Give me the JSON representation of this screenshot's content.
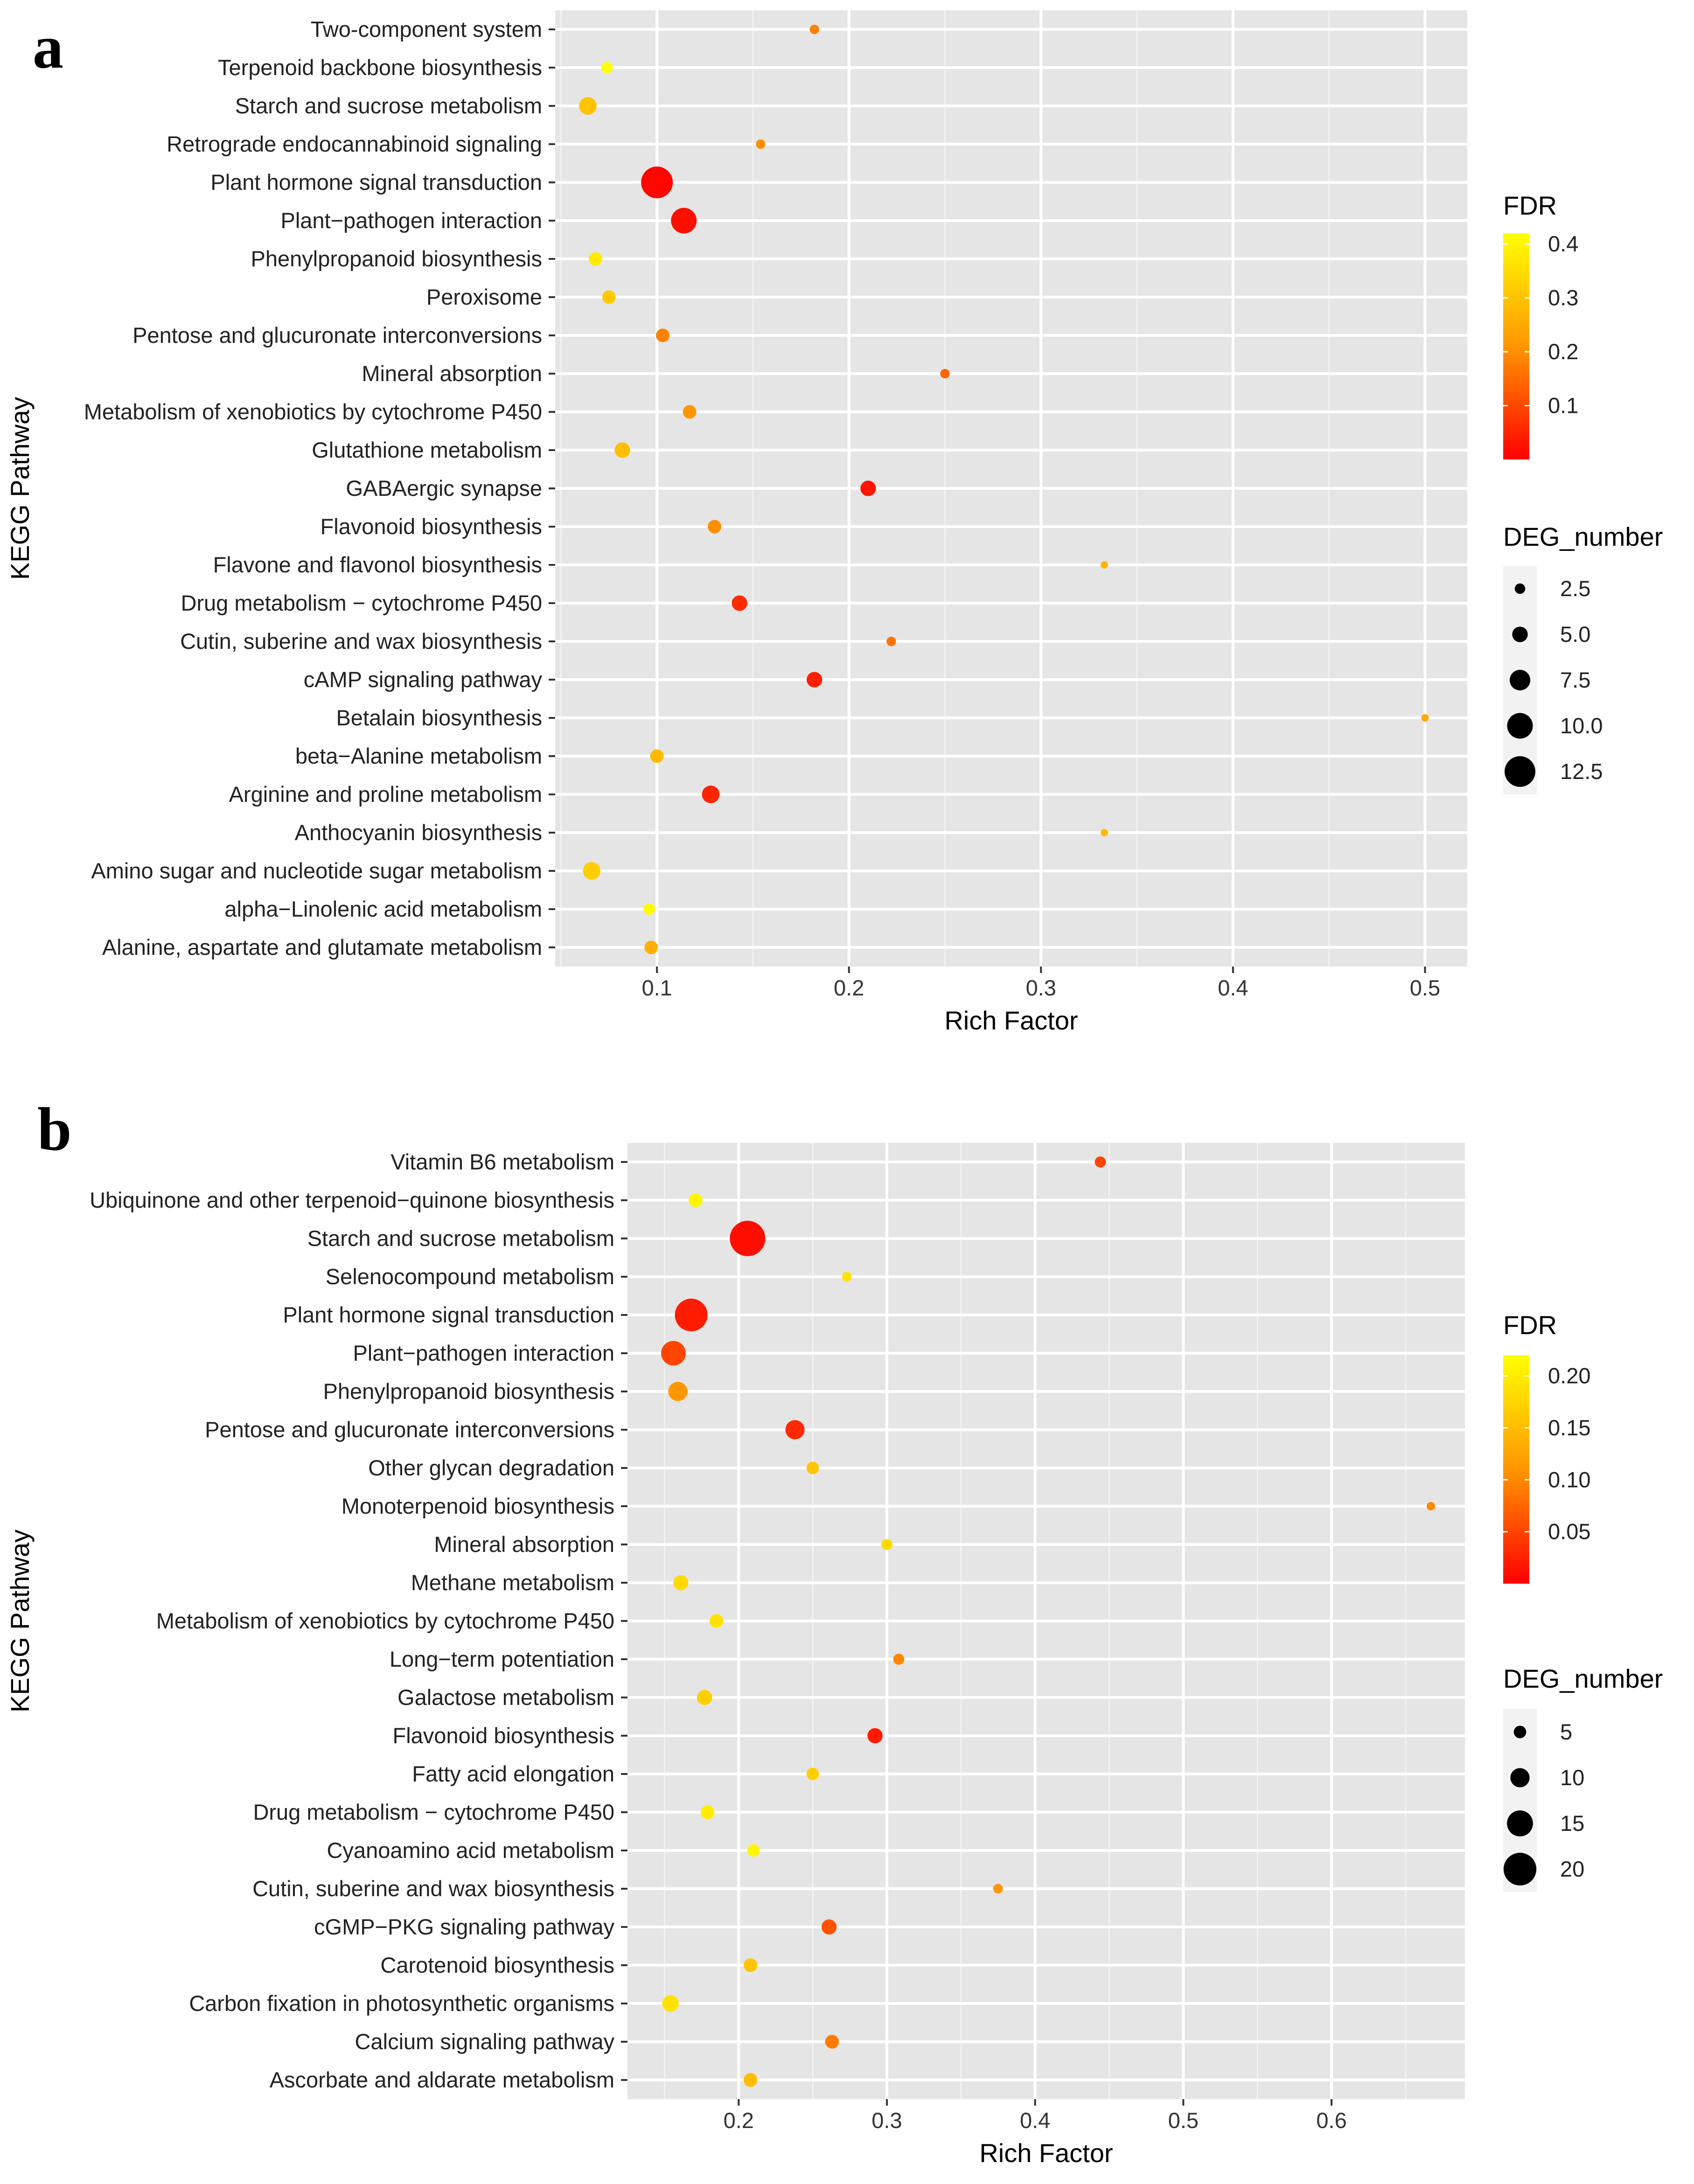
{
  "panels": [
    {
      "letter": "a",
      "chart_data": {
        "type": "scatter",
        "xlabel": "Rich Factor",
        "ylabel": "KEGG Pathway",
        "xlim": [
          0.047,
          0.522
        ],
        "xticks": [
          0.1,
          0.2,
          0.3,
          0.4,
          0.5
        ],
        "xtick_labels": [
          "0.1",
          "0.2",
          "0.3",
          "0.4",
          "0.5"
        ],
        "grid": true,
        "color_legend": {
          "title": "FDR",
          "min": 0.0,
          "max": 0.42,
          "ticks": [
            0.1,
            0.2,
            0.3,
            0.4
          ],
          "tick_labels": [
            "0.1",
            "0.2",
            "0.3",
            "0.4"
          ]
        },
        "size_legend": {
          "title": "DEG_number",
          "values": [
            2.5,
            5.0,
            7.5,
            10.0,
            12.5
          ],
          "labels": [
            "2.5",
            "5.0",
            "7.5",
            "10.0",
            "12.5"
          ]
        },
        "size_range": [
          1,
          13
        ],
        "points": [
          {
            "pathway": "Two-component system",
            "rich_factor": 0.182,
            "fdr": 0.18,
            "deg_number": 2
          },
          {
            "pathway": "Terpenoid backbone biosynthesis",
            "rich_factor": 0.074,
            "fdr": 0.42,
            "deg_number": 3
          },
          {
            "pathway": "Starch and sucrose metabolism",
            "rich_factor": 0.064,
            "fdr": 0.3,
            "deg_number": 6
          },
          {
            "pathway": "Retrograde endocannabinoid signaling",
            "rich_factor": 0.154,
            "fdr": 0.2,
            "deg_number": 2
          },
          {
            "pathway": "Plant hormone signal transduction",
            "rich_factor": 0.1,
            "fdr": 0.01,
            "deg_number": 13
          },
          {
            "pathway": "Plant−pathogen interaction",
            "rich_factor": 0.114,
            "fdr": 0.02,
            "deg_number": 10
          },
          {
            "pathway": "Phenylpropanoid biosynthesis",
            "rich_factor": 0.068,
            "fdr": 0.38,
            "deg_number": 4
          },
          {
            "pathway": "Peroxisome",
            "rich_factor": 0.075,
            "fdr": 0.31,
            "deg_number": 4
          },
          {
            "pathway": "Pentose and glucuronate interconversions",
            "rich_factor": 0.103,
            "fdr": 0.18,
            "deg_number": 4
          },
          {
            "pathway": "Mineral absorption",
            "rich_factor": 0.25,
            "fdr": 0.14,
            "deg_number": 2
          },
          {
            "pathway": "Metabolism of xenobiotics by cytochrome P450",
            "rich_factor": 0.117,
            "fdr": 0.21,
            "deg_number": 4
          },
          {
            "pathway": "Glutathione metabolism",
            "rich_factor": 0.082,
            "fdr": 0.29,
            "deg_number": 5
          },
          {
            "pathway": "GABAergic synapse",
            "rich_factor": 0.21,
            "fdr": 0.03,
            "deg_number": 5
          },
          {
            "pathway": "Flavonoid biosynthesis",
            "rich_factor": 0.13,
            "fdr": 0.2,
            "deg_number": 4
          },
          {
            "pathway": "Flavone and flavonol biosynthesis",
            "rich_factor": 0.333,
            "fdr": 0.27,
            "deg_number": 1
          },
          {
            "pathway": "Drug metabolism − cytochrome P450",
            "rich_factor": 0.143,
            "fdr": 0.06,
            "deg_number": 5
          },
          {
            "pathway": "Cutin, suberine and wax biosynthesis",
            "rich_factor": 0.222,
            "fdr": 0.16,
            "deg_number": 2
          },
          {
            "pathway": "cAMP signaling pathway",
            "rich_factor": 0.182,
            "fdr": 0.04,
            "deg_number": 5
          },
          {
            "pathway": "Betalain biosynthesis",
            "rich_factor": 0.5,
            "fdr": 0.25,
            "deg_number": 1
          },
          {
            "pathway": "beta−Alanine metabolism",
            "rich_factor": 0.1,
            "fdr": 0.28,
            "deg_number": 4
          },
          {
            "pathway": "Arginine and proline metabolism",
            "rich_factor": 0.128,
            "fdr": 0.05,
            "deg_number": 6
          },
          {
            "pathway": "Anthocyanin biosynthesis",
            "rich_factor": 0.333,
            "fdr": 0.28,
            "deg_number": 1
          },
          {
            "pathway": "Amino sugar and nucleotide sugar metabolism",
            "rich_factor": 0.066,
            "fdr": 0.32,
            "deg_number": 6
          },
          {
            "pathway": "alpha−Linolenic acid metabolism",
            "rich_factor": 0.096,
            "fdr": 0.41,
            "deg_number": 3
          },
          {
            "pathway": "Alanine, aspartate and glutamate metabolism",
            "rich_factor": 0.097,
            "fdr": 0.26,
            "deg_number": 4
          }
        ]
      }
    },
    {
      "letter": "b",
      "chart_data": {
        "type": "scatter",
        "xlabel": "Rich Factor",
        "ylabel": "KEGG Pathway",
        "xlim": [
          0.125,
          0.69
        ],
        "xticks": [
          0.2,
          0.3,
          0.4,
          0.5,
          0.6
        ],
        "xtick_labels": [
          "0.2",
          "0.3",
          "0.4",
          "0.5",
          "0.6"
        ],
        "grid": true,
        "color_legend": {
          "title": "FDR",
          "min": 0.0,
          "max": 0.22,
          "ticks": [
            0.05,
            0.1,
            0.15,
            0.2
          ],
          "tick_labels": [
            "0.05",
            "0.10",
            "0.15",
            "0.20"
          ]
        },
        "size_legend": {
          "title": "DEG_number",
          "values": [
            5,
            10,
            15,
            20
          ],
          "labels": [
            "5",
            "10",
            "15",
            "20"
          ]
        },
        "size_range": [
          2,
          22
        ],
        "points": [
          {
            "pathway": "Vitamin B6 metabolism",
            "rich_factor": 0.444,
            "fdr": 0.05,
            "deg_number": 4
          },
          {
            "pathway": "Ubiquinone and other terpenoid−quinone biosynthesis",
            "rich_factor": 0.171,
            "fdr": 0.21,
            "deg_number": 6
          },
          {
            "pathway": "Starch and sucrose metabolism",
            "rich_factor": 0.206,
            "fdr": 0.01,
            "deg_number": 22
          },
          {
            "pathway": "Selenocompound metabolism",
            "rich_factor": 0.273,
            "fdr": 0.19,
            "deg_number": 3
          },
          {
            "pathway": "Plant hormone signal transduction",
            "rich_factor": 0.168,
            "fdr": 0.02,
            "deg_number": 20
          },
          {
            "pathway": "Plant−pathogen interaction",
            "rich_factor": 0.156,
            "fdr": 0.05,
            "deg_number": 14
          },
          {
            "pathway": "Phenylpropanoid biosynthesis",
            "rich_factor": 0.159,
            "fdr": 0.11,
            "deg_number": 10
          },
          {
            "pathway": "Pentose and glucuronate interconversions",
            "rich_factor": 0.238,
            "fdr": 0.03,
            "deg_number": 10
          },
          {
            "pathway": "Other glycan degradation",
            "rich_factor": 0.25,
            "fdr": 0.16,
            "deg_number": 5
          },
          {
            "pathway": "Monoterpenoid biosynthesis",
            "rich_factor": 0.667,
            "fdr": 0.1,
            "deg_number": 2
          },
          {
            "pathway": "Mineral absorption",
            "rich_factor": 0.3,
            "fdr": 0.18,
            "deg_number": 4
          },
          {
            "pathway": "Methane metabolism",
            "rich_factor": 0.161,
            "fdr": 0.18,
            "deg_number": 7
          },
          {
            "pathway": "Metabolism of xenobiotics by cytochrome P450",
            "rich_factor": 0.185,
            "fdr": 0.19,
            "deg_number": 6
          },
          {
            "pathway": "Long−term potentiation",
            "rich_factor": 0.308,
            "fdr": 0.1,
            "deg_number": 4
          },
          {
            "pathway": "Galactose metabolism",
            "rich_factor": 0.177,
            "fdr": 0.17,
            "deg_number": 7
          },
          {
            "pathway": "Flavonoid biosynthesis",
            "rich_factor": 0.292,
            "fdr": 0.02,
            "deg_number": 7
          },
          {
            "pathway": "Fatty acid elongation",
            "rich_factor": 0.25,
            "fdr": 0.17,
            "deg_number": 5
          },
          {
            "pathway": "Drug metabolism − cytochrome P450",
            "rich_factor": 0.179,
            "fdr": 0.2,
            "deg_number": 6
          },
          {
            "pathway": "Cyanoamino acid metabolism",
            "rich_factor": 0.21,
            "fdr": 0.21,
            "deg_number": 5
          },
          {
            "pathway": "Cutin, suberine and wax biosynthesis",
            "rich_factor": 0.375,
            "fdr": 0.11,
            "deg_number": 3
          },
          {
            "pathway": "cGMP−PKG signaling pathway",
            "rich_factor": 0.261,
            "fdr": 0.06,
            "deg_number": 7
          },
          {
            "pathway": "Carotenoid biosynthesis",
            "rich_factor": 0.208,
            "fdr": 0.16,
            "deg_number": 6
          },
          {
            "pathway": "Carbon fixation in photosynthetic organisms",
            "rich_factor": 0.154,
            "fdr": 0.19,
            "deg_number": 8
          },
          {
            "pathway": "Calcium signaling pathway",
            "rich_factor": 0.263,
            "fdr": 0.09,
            "deg_number": 6
          },
          {
            "pathway": "Ascorbate and aldarate metabolism",
            "rich_factor": 0.208,
            "fdr": 0.15,
            "deg_number": 6
          }
        ]
      }
    }
  ]
}
